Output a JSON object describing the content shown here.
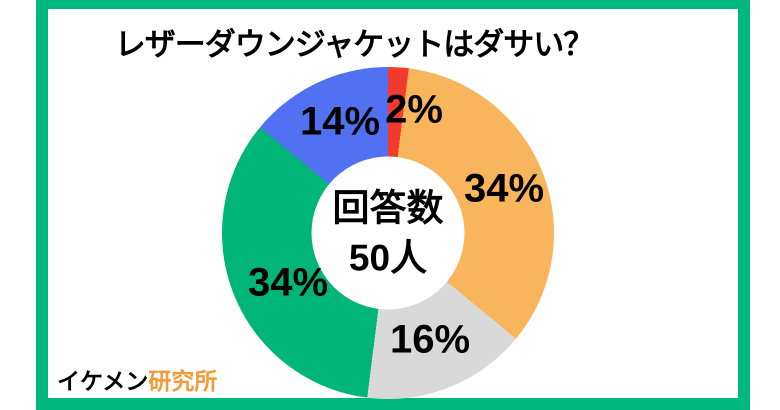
{
  "title": "レザーダウンジャケットはダサい？",
  "frame_color": "#00b87e",
  "chart_data": {
    "type": "pie",
    "donut": true,
    "start_angle_deg": 0,
    "direction": "clockwise",
    "title": "レザーダウンジャケットはダサい？",
    "center_label": {
      "line1": "回答数",
      "line2": "50人"
    },
    "total_respondents": 50,
    "legend_position": "none",
    "segments": [
      {
        "label": "2%",
        "value": 2,
        "color": "#f23b2e"
      },
      {
        "label": "34%",
        "value": 34,
        "color": "#f9b55c"
      },
      {
        "label": "16%",
        "value": 16,
        "color": "#d9d9d9"
      },
      {
        "label": "34%",
        "value": 34,
        "color": "#00b578"
      },
      {
        "label": "14%",
        "value": 14,
        "color": "#5271f2"
      }
    ]
  },
  "watermark": {
    "prefix": "イケメン",
    "suffix": "研究所",
    "prefix_color": "#000000",
    "suffix_color": "#f19a38"
  }
}
